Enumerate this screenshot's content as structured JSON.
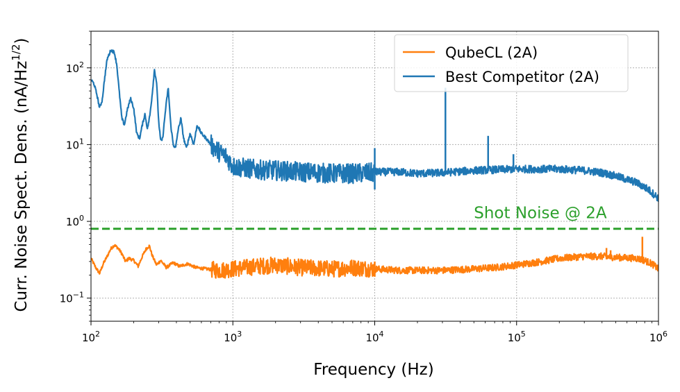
{
  "chart_data": {
    "type": "line",
    "xscale": "log",
    "yscale": "log",
    "xlim": [
      100,
      1000000
    ],
    "ylim": [
      0.05,
      300
    ],
    "xlabel": "Frequency (Hz)",
    "ylabel_main": "Curr. Noise Spect. Dens. (nA/Hz",
    "ylabel_sup": "1/2",
    "ylabel_end": ")",
    "grid": true,
    "legend_position": "top-right",
    "x_ticks": [
      {
        "value": 100,
        "base": "10",
        "exp": "2"
      },
      {
        "value": 1000,
        "base": "10",
        "exp": "3"
      },
      {
        "value": 10000,
        "base": "10",
        "exp": "4"
      },
      {
        "value": 100000,
        "base": "10",
        "exp": "5"
      },
      {
        "value": 1000000,
        "base": "10",
        "exp": "6"
      }
    ],
    "y_ticks": [
      {
        "value": 0.1,
        "base": "10",
        "exp": "−1"
      },
      {
        "value": 1,
        "base": "10",
        "exp": "0"
      },
      {
        "value": 10,
        "base": "10",
        "exp": "1"
      },
      {
        "value": 100,
        "base": "10",
        "exp": "2"
      }
    ],
    "series": [
      {
        "name": "QubeCL (2A)",
        "color": "#ff7f0e",
        "x": [
          100,
          108,
          115,
          122,
          130,
          138,
          146,
          155,
          165,
          175,
          185,
          200,
          215,
          230,
          245,
          258,
          270,
          290,
          310,
          340,
          380,
          420,
          480,
          550,
          650,
          800,
          1000,
          1500,
          2000,
          3000,
          5000,
          7000,
          9900,
          10100,
          15000,
          20000,
          30000,
          50000,
          70000,
          100000,
          150000,
          200000,
          300000,
          400000,
          500000,
          700000,
          800000,
          900000,
          1000000
        ],
        "values": [
          0.33,
          0.25,
          0.21,
          0.28,
          0.35,
          0.44,
          0.49,
          0.45,
          0.38,
          0.3,
          0.33,
          0.31,
          0.26,
          0.35,
          0.44,
          0.48,
          0.36,
          0.27,
          0.31,
          0.25,
          0.29,
          0.26,
          0.28,
          0.25,
          0.24,
          0.23,
          0.24,
          0.26,
          0.27,
          0.25,
          0.24,
          0.25,
          0.24,
          0.24,
          0.23,
          0.23,
          0.23,
          0.24,
          0.25,
          0.27,
          0.3,
          0.33,
          0.35,
          0.35,
          0.34,
          0.33,
          0.31,
          0.28,
          0.24
        ]
      },
      {
        "name": "Best Competitor (2A)",
        "color": "#1f77b4",
        "x": [
          100,
          105,
          110,
          115,
          120,
          125,
          130,
          138,
          146,
          152,
          158,
          165,
          172,
          180,
          190,
          200,
          210,
          220,
          230,
          240,
          250,
          260,
          270,
          280,
          290,
          300,
          310,
          320,
          335,
          350,
          365,
          380,
          395,
          410,
          430,
          450,
          470,
          500,
          530,
          560,
          600,
          650,
          700,
          800,
          900,
          1000,
          1500,
          2000,
          3000,
          5000,
          7000,
          9900,
          10100,
          15000,
          20000,
          30000,
          50000,
          70000,
          100000,
          150000,
          200000,
          300000,
          400000,
          500000,
          700000,
          850000,
          1000000
        ],
        "values": [
          70,
          62,
          45,
          30,
          38,
          75,
          130,
          170,
          160,
          110,
          50,
          22,
          18,
          28,
          40,
          30,
          14,
          12,
          18,
          25,
          16,
          24,
          45,
          95,
          65,
          20,
          11,
          12,
          28,
          55,
          18,
          10,
          9,
          15,
          22,
          12,
          9,
          14,
          10,
          18,
          14,
          12,
          10,
          8,
          7,
          5.2,
          4.7,
          4.6,
          4.4,
          4.2,
          4.2,
          4.3,
          4.4,
          4.4,
          4.2,
          4.3,
          4.6,
          4.7,
          4.8,
          4.8,
          4.8,
          4.6,
          4.3,
          3.9,
          3.2,
          2.6,
          2.0
        ]
      }
    ],
    "spikes": [
      {
        "series": "Best Competitor (2A)",
        "x": 10000,
        "top": 9,
        "bottom": 2.6
      },
      {
        "series": "Best Competitor (2A)",
        "x": 31500,
        "top": 55,
        "bottom": 4.4
      },
      {
        "series": "Best Competitor (2A)",
        "x": 63000,
        "top": 13,
        "bottom": 4.5
      },
      {
        "series": "Best Competitor (2A)",
        "x": 95000,
        "top": 7.5,
        "bottom": 4.5
      },
      {
        "series": "QubeCL (2A)",
        "x": 10000,
        "top": 0.3,
        "bottom": 0.19
      },
      {
        "series": "QubeCL (2A)",
        "x": 430000,
        "top": 0.45,
        "bottom": 0.32
      },
      {
        "series": "QubeCL (2A)",
        "x": 460000,
        "top": 0.42,
        "bottom": 0.32
      },
      {
        "series": "QubeCL (2A)",
        "x": 770000,
        "top": 0.63,
        "bottom": 0.3
      }
    ],
    "reference_lines": [
      {
        "name": "Shot Noise @ 2A",
        "value": 0.8,
        "color": "#2ca02c",
        "style": "dashed"
      }
    ],
    "annotations": [
      {
        "text": "Shot Noise @ 2A",
        "x": 50000,
        "y": 1.1,
        "color": "#2ca02c"
      }
    ]
  }
}
